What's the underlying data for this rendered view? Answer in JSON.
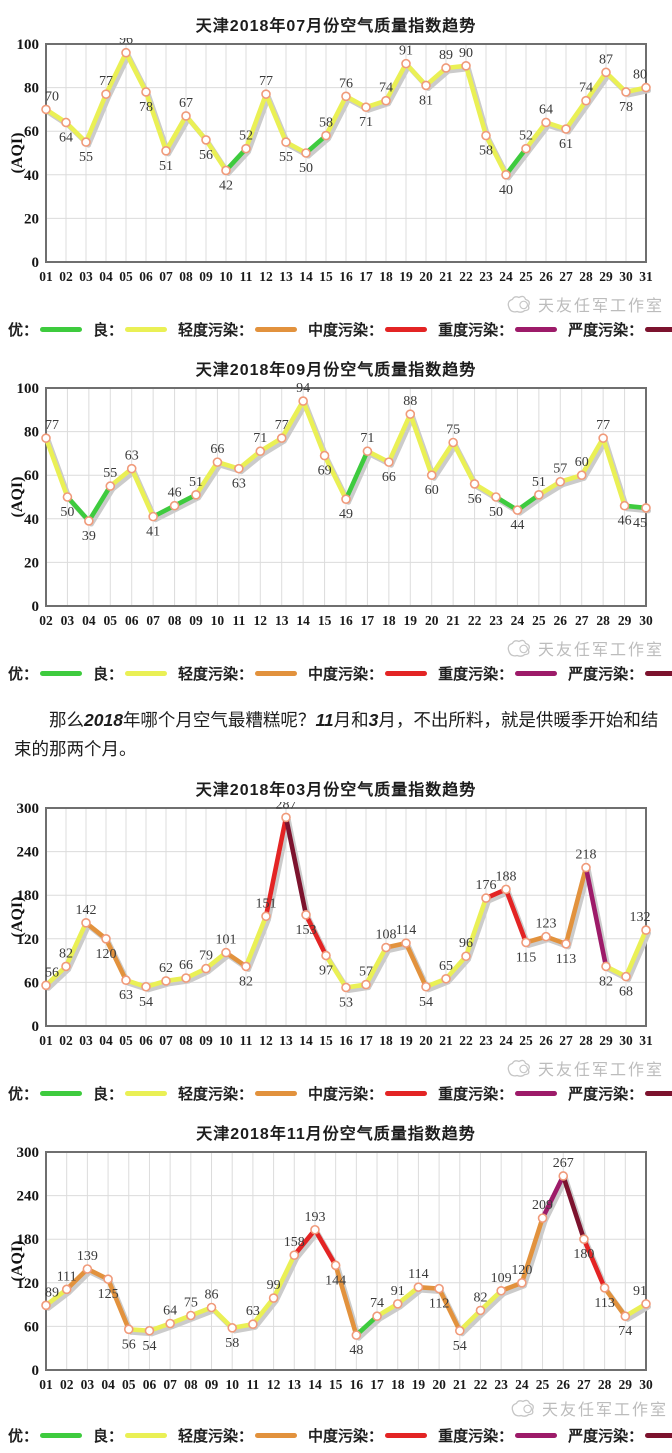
{
  "watermark": {
    "text": "天友任军工作室"
  },
  "paragraph": {
    "segments": [
      {
        "text": "那么",
        "em": false
      },
      {
        "text": "2018",
        "em": true
      },
      {
        "text": "年哪个月空气最糟糕呢？",
        "em": false
      },
      {
        "text": "11",
        "em": true
      },
      {
        "text": "月和",
        "em": false
      },
      {
        "text": "3",
        "em": true
      },
      {
        "text": "月，不出所料，就是供暖季开始和结束的那两个月。",
        "em": false
      }
    ]
  },
  "aqi_levels": [
    {
      "label": "优：",
      "color": "#3ecb3e",
      "max": 50
    },
    {
      "label": "良：",
      "color": "#eaf055",
      "max": 100
    },
    {
      "label": "轻度污染：",
      "color": "#e2923d",
      "max": 150
    },
    {
      "label": "中度污染：",
      "color": "#e32424",
      "max": 200
    },
    {
      "label": "重度污染：",
      "color": "#9d1b69",
      "max": 250
    },
    {
      "label": "严度污染：",
      "color": "#7c132e",
      "max": 9999
    }
  ],
  "marker": {
    "fill": "#ffffff",
    "stroke": "#f09a7a"
  },
  "chart_data": [
    {
      "type": "line",
      "title": "天津2018年07月份空气质量指数趋势",
      "xlabel": "",
      "ylabel": "(AQI)",
      "ylim": [
        0,
        100
      ],
      "ytick_step": 20,
      "grid": true,
      "legend_position": "below",
      "categories": [
        "01",
        "02",
        "03",
        "04",
        "05",
        "06",
        "07",
        "08",
        "09",
        "10",
        "11",
        "12",
        "13",
        "14",
        "15",
        "16",
        "17",
        "18",
        "19",
        "20",
        "21",
        "22",
        "23",
        "24",
        "25",
        "26",
        "27",
        "28",
        "29",
        "30",
        "31"
      ],
      "values": [
        70,
        64,
        55,
        77,
        96,
        78,
        51,
        67,
        56,
        42,
        52,
        77,
        55,
        50,
        58,
        76,
        71,
        74,
        91,
        81,
        89,
        90,
        58,
        40,
        52,
        64,
        61,
        74,
        87,
        78,
        80
      ]
    },
    {
      "type": "line",
      "title": "天津2018年09月份空气质量指数趋势",
      "xlabel": "",
      "ylabel": "(AQI)",
      "ylim": [
        0,
        100
      ],
      "ytick_step": 20,
      "grid": true,
      "legend_position": "below",
      "categories": [
        "02",
        "03",
        "04",
        "05",
        "06",
        "07",
        "08",
        "09",
        "10",
        "11",
        "12",
        "13",
        "14",
        "15",
        "16",
        "17",
        "18",
        "19",
        "20",
        "21",
        "22",
        "23",
        "24",
        "25",
        "26",
        "27",
        "28",
        "29",
        "30"
      ],
      "values": [
        77,
        50,
        39,
        55,
        63,
        41,
        46,
        51,
        66,
        63,
        71,
        77,
        94,
        69,
        49,
        71,
        66,
        88,
        60,
        75,
        56,
        50,
        44,
        51,
        57,
        60,
        77,
        46,
        45
      ]
    },
    {
      "type": "line",
      "title": "天津2018年03月份空气质量指数趋势",
      "xlabel": "",
      "ylabel": "(AQI)",
      "ylim": [
        0,
        300
      ],
      "ytick_step": 60,
      "grid": true,
      "legend_position": "below",
      "categories": [
        "01",
        "02",
        "03",
        "04",
        "05",
        "06",
        "07",
        "08",
        "09",
        "10",
        "11",
        "12",
        "13",
        "14",
        "15",
        "16",
        "17",
        "18",
        "19",
        "20",
        "21",
        "22",
        "23",
        "24",
        "25",
        "26",
        "27",
        "28",
        "29",
        "30",
        "31"
      ],
      "values": [
        56,
        82,
        142,
        120,
        63,
        54,
        62,
        66,
        79,
        101,
        82,
        151,
        287,
        153,
        97,
        53,
        57,
        108,
        114,
        54,
        65,
        96,
        176,
        188,
        115,
        123,
        113,
        218,
        82,
        68,
        132
      ]
    },
    {
      "type": "line",
      "title": "天津2018年11月份空气质量指数趋势",
      "xlabel": "",
      "ylabel": "(AQI)",
      "ylim": [
        0,
        300
      ],
      "ytick_step": 60,
      "grid": true,
      "legend_position": "below",
      "categories": [
        "01",
        "02",
        "03",
        "04",
        "05",
        "06",
        "07",
        "08",
        "09",
        "10",
        "11",
        "12",
        "13",
        "14",
        "15",
        "16",
        "17",
        "18",
        "19",
        "20",
        "21",
        "22",
        "23",
        "24",
        "25",
        "26",
        "27",
        "28",
        "29",
        "30"
      ],
      "values": [
        89,
        111,
        139,
        125,
        56,
        54,
        64,
        75,
        86,
        58,
        63,
        99,
        158,
        193,
        144,
        48,
        74,
        91,
        114,
        112,
        54,
        82,
        109,
        120,
        209,
        267,
        180,
        113,
        74,
        91
      ]
    }
  ]
}
